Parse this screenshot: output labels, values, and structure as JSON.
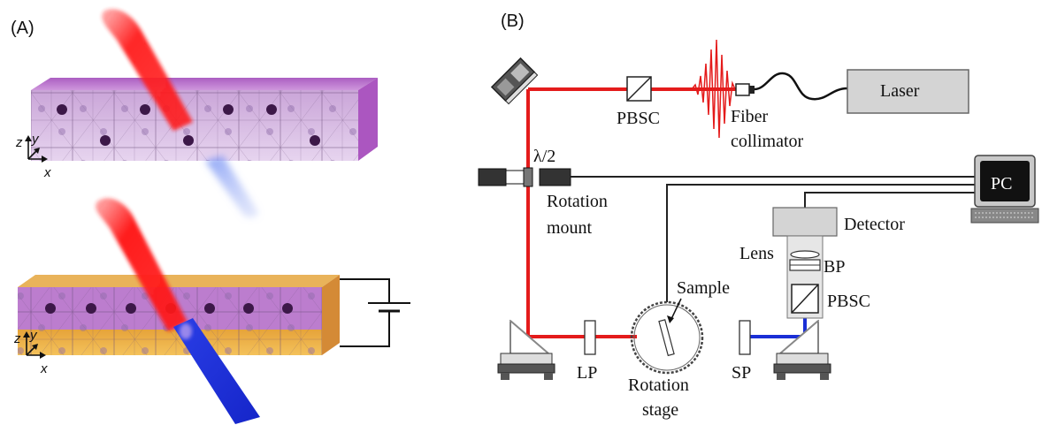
{
  "panel_a": {
    "label": "(A)",
    "axes_top": {
      "z": "z",
      "y": "y",
      "x": "x"
    },
    "axes_bottom": {
      "z": "z",
      "y": "y",
      "x": "x"
    }
  },
  "panel_b": {
    "label": "(B)",
    "components": {
      "laser": "Laser",
      "pbsc_top": "PBSC",
      "fiber_line1": "Fiber",
      "fiber_line2": "collimator",
      "half_wave": "λ/2",
      "rotation_mount_line1": "Rotation",
      "rotation_mount_line2": "mount",
      "pc": "PC",
      "detector": "Detector",
      "lens": "Lens",
      "bp": "BP",
      "pbsc_right": "PBSC",
      "sample": "Sample",
      "lp": "LP",
      "sp": "SP",
      "rotation_stage_line1": "Rotation",
      "rotation_stage_line2": "stage"
    }
  },
  "colors": {
    "red_beam": "#e41b1b",
    "blue_beam": "#1a2fd6",
    "crystal_purple": "#b35ac9",
    "electrode_orange": "#f0a43a",
    "gray_box": "#d4d4d4"
  }
}
